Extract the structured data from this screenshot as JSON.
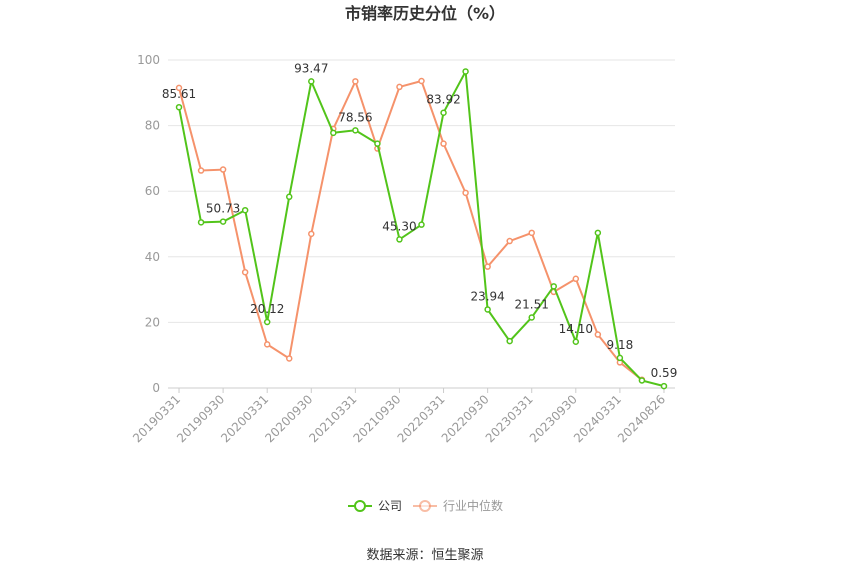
{
  "chart_data": {
    "type": "line",
    "title": "市销率历史分位（%）",
    "x": [
      "20190331",
      "20190630",
      "20190930",
      "20191231",
      "20200331",
      "20200630",
      "20200930",
      "20201231",
      "20210331",
      "20210630",
      "20210930",
      "20211231",
      "20220331",
      "20220630",
      "20220930",
      "20221231",
      "20230331",
      "20230630",
      "20230930",
      "20231231",
      "20240331",
      "20240630",
      "20240826"
    ],
    "x_tick_labels": [
      "20190331",
      "20190930",
      "20200331",
      "20200930",
      "20210331",
      "20210930",
      "20220331",
      "20220930",
      "20230331",
      "20230930",
      "20240331",
      "20240826"
    ],
    "y_ticks": [
      "0",
      "20",
      "40",
      "60",
      "80",
      "100"
    ],
    "ylim": [
      0,
      100
    ],
    "grid": true,
    "legend_position": "bottom",
    "series": [
      {
        "name": "公司",
        "color": "#52c41a",
        "values": [
          85.61,
          50.5,
          50.73,
          54.2,
          20.12,
          58.3,
          93.47,
          77.8,
          78.56,
          74.5,
          45.3,
          49.8,
          83.92,
          96.5,
          23.94,
          14.3,
          21.51,
          31.0,
          14.1,
          47.3,
          9.18,
          2.3,
          0.59
        ],
        "labels": [
          "85.61",
          null,
          "50.73",
          null,
          "20.12",
          null,
          "93.47",
          null,
          "78.56",
          null,
          "45.30",
          null,
          "83.92",
          null,
          "23.94",
          null,
          "21.51",
          null,
          "14.10",
          null,
          "9.18",
          null,
          "0.59"
        ]
      },
      {
        "name": "行业中位数",
        "color": "#f5926b",
        "values": [
          91.5,
          66.3,
          66.6,
          35.3,
          13.3,
          9.0,
          47.0,
          79.0,
          93.5,
          73.0,
          91.8,
          93.6,
          74.5,
          59.5,
          37.0,
          44.8,
          47.3,
          29.3,
          33.3,
          16.3,
          7.8,
          2.5,
          null
        ]
      }
    ],
    "source": "数据来源：恒生聚源"
  }
}
